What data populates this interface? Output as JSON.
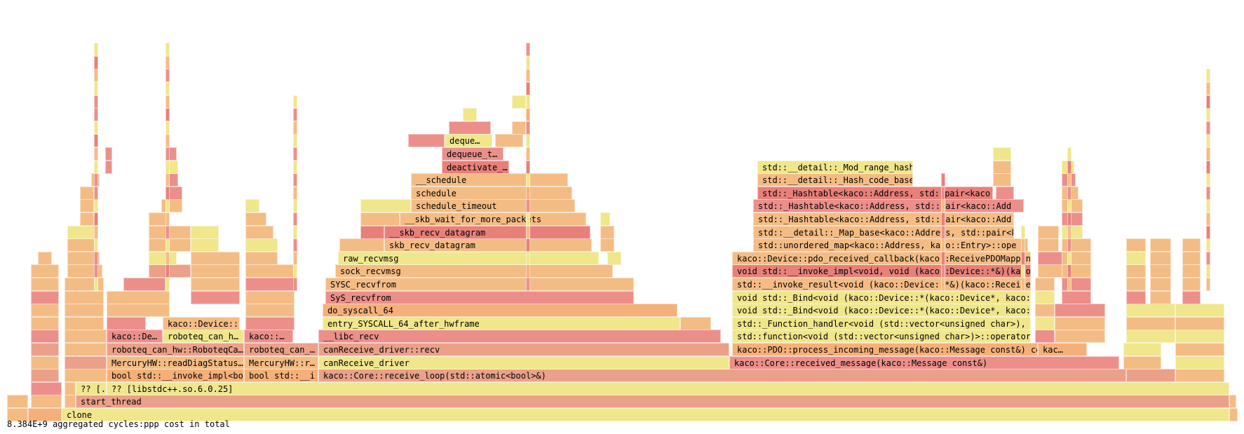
{
  "footer": {
    "summary": "8.384E+9 aggregated cycles:ppp cost in total"
  },
  "colors": {
    "yellow": "#f0e68c",
    "light_orange": "#f4bc85",
    "orange": "#f5b07a",
    "salmon": "#eba08a",
    "pink": "#ec8f8a",
    "red": "#e8807a"
  },
  "frames": {
    "clone": "clone",
    "start_thread": "start_thread",
    "libstdcxx_short": "?? [...",
    "libstdcxx": "?? [libstdc++.so.6.0.25]",
    "invoke_impl_bo": "bool std::__invoke_impl<bo",
    "invoke_impl_i": "bool std::__i",
    "core_receive_loop": "kaco::Core::receive_loop(std::atomic<bool>&)",
    "mercury_readdiag": "MercuryHW::readDiagStatus…",
    "mercury_r": "MercuryHW::r…",
    "canreceive_driver_a": "canReceive_driver",
    "core_received_message": "kaco::Core::received_message(kaco::Message const&)",
    "roboteq_can_hw_roboteqca": "roboteq_can_hw::RoboteqCa…",
    "roboteq_can_short": "roboteq_can_…",
    "canreceive_driver_recv": "canReceive_driver::recv",
    "pdo_process_incoming": "kaco::PDO::process_incoming_message(kaco::Message const&) const",
    "kac_short": "kac…",
    "kaco_de": "kaco::De…",
    "roboteq_can_h": "roboteq_can_h…",
    "kaco_short": "kaco::…",
    "libc_recv": "__libc_recv",
    "std_function_operator": "std::function<void (std::vector<unsigned char>)>::operator",
    "kaco_device_short": "kaco::Device::",
    "entry_syscall": "entry_SYSCALL_64_after_hwframe",
    "function_handler": "std::_Function_handler<void (std::vector<unsigned char>),",
    "do_syscall": "do_syscall_64",
    "bind_1": "void std::_Bind<void (kaco::Device::*(kaco::Device*, kaco:",
    "sys_recvfrom": "SyS_recvfrom",
    "bind_2": "void std::_Bind<void (kaco::Device::*(kaco::Device*, kaco:",
    "sysc_recvfrom": "SYSC_recvfrom",
    "invoke_result": "std::__invoke_result<void (kaco::Device::*&)(kaco::Receive",
    "sock_recvmsg": "sock_recvmsg",
    "invoke_impl_kaco": "void std::__invoke_impl<void, void (kaco::Device::*&)(kaco",
    "raw_recvmsg": "raw_recvmsg",
    "pdo_received_callback": "kaco::Device::pdo_received_callback(kaco::ReceivePDOMappin",
    "skb_recv_datagram": "skb_recv_datagram",
    "unordered_map": "std::unordered_map<kaco::Address, kaco::Entry>::ope",
    "skb_recv_datagram_u": "__skb_recv_datagram",
    "map_base": "std::__detail::_Map_base<kaco::Address, std::pair<kaco::Address",
    "skb_wait": "__skb_wait_for_more_packets",
    "hashtable_1": "std::_Hashtable<kaco::Address, std::pair<kaco::Add",
    "schedule_timeout": "schedule_timeout",
    "hashtable_2": "std::_Hashtable<kaco::Address, std::pair<kaco::Add",
    "schedule": "schedule",
    "hashtable_3": "std::_Hashtable<kaco::Address, std::pair<kaco",
    "schedule_u": "__schedule",
    "hash_code_base": "std::__detail::_Hash_code_base",
    "deactivate": "deactivate_…",
    "mod_range_hash": "std::__detail::_Mod_range_hash",
    "dequeue_t": "dequeue_t…",
    "deque": "deque…"
  },
  "filler_names": [
    "",
    ""
  ]
}
